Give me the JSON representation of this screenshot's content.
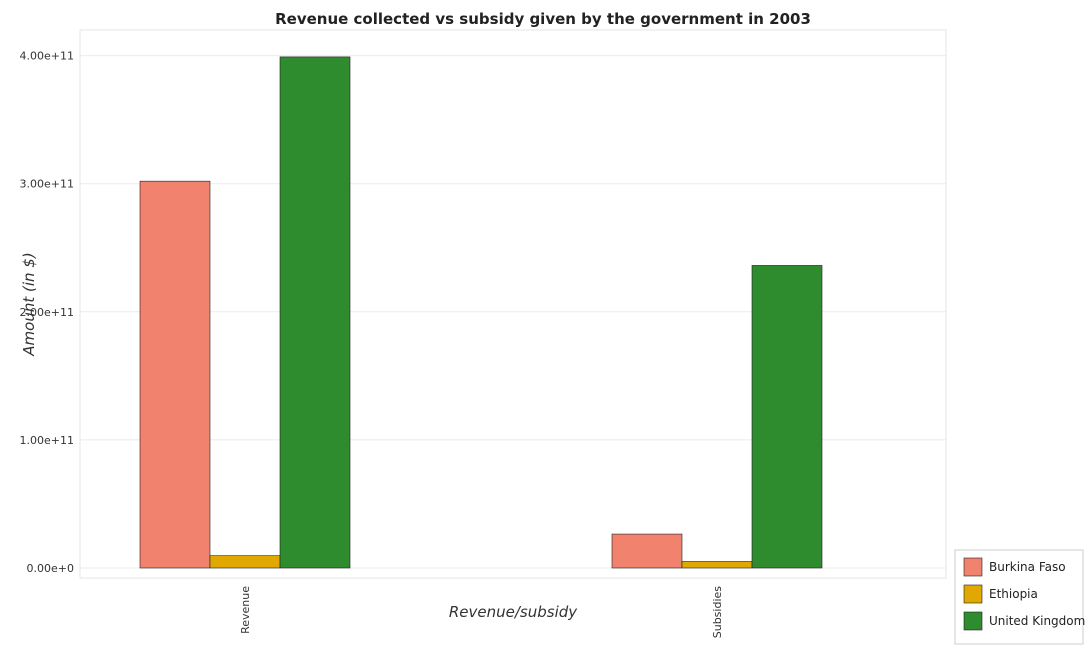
{
  "chart_data": {
    "type": "bar",
    "title": "Revenue collected vs subsidy given by the government in 2003",
    "xlabel": "Revenue/subsidy",
    "ylabel": "Amount (in $)",
    "categories": [
      "Revenue",
      "Subsidies"
    ],
    "series": [
      {
        "name": "Burkina Faso",
        "color": "#f0826e",
        "values": [
          302000000000,
          26500000000
        ]
      },
      {
        "name": "Ethiopia",
        "color": "#e0a800",
        "values": [
          9600000000,
          5100000000
        ]
      },
      {
        "name": "United Kingdom",
        "color": "#2e8b2e",
        "values": [
          399000000000,
          236200000000
        ]
      }
    ],
    "ylim": [
      0,
      420000000000
    ],
    "yticks": [
      0,
      100000000000,
      200000000000,
      300000000000,
      400000000000
    ],
    "ytick_labels": [
      "0.00e+0",
      "1.00e+11",
      "2.00e+11",
      "3.00e+11",
      "4.00e+11"
    ],
    "grid": true,
    "legend_position": "bottom-right"
  }
}
